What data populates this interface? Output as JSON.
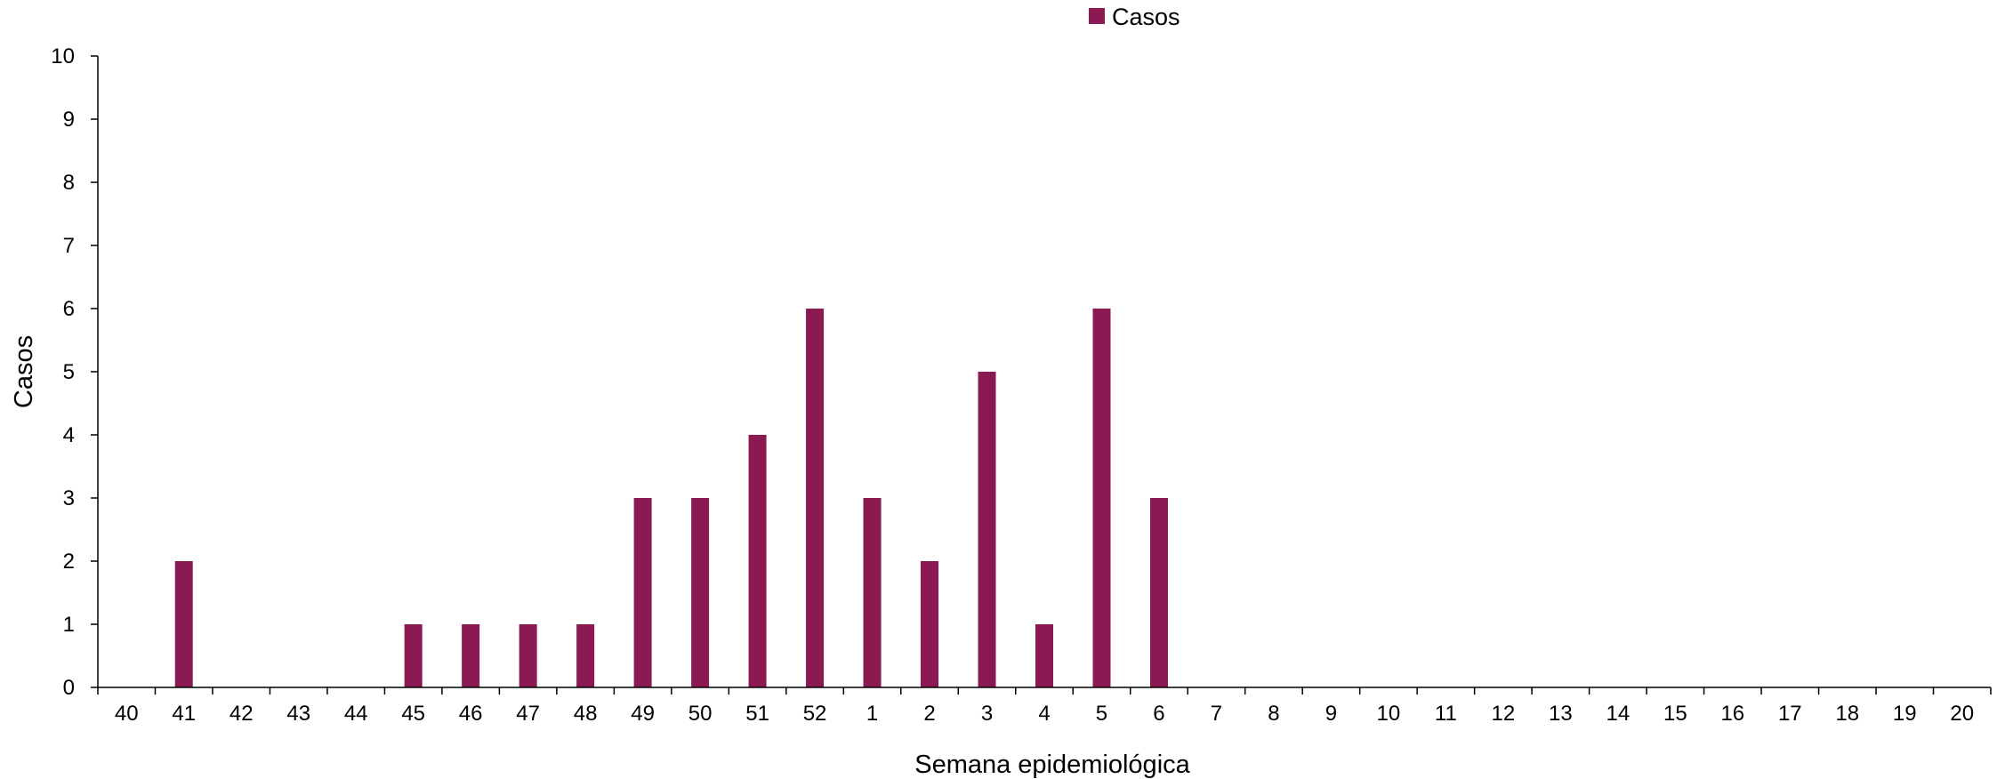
{
  "chart_data": {
    "type": "bar",
    "title": "",
    "xlabel": "Semana epidemiológica",
    "ylabel": "Casos",
    "ylim": [
      0,
      10
    ],
    "yticks": [
      0,
      1,
      2,
      3,
      4,
      5,
      6,
      7,
      8,
      9,
      10
    ],
    "grid": false,
    "legend_position": "top-center",
    "categories": [
      "40",
      "41",
      "42",
      "43",
      "44",
      "45",
      "46",
      "47",
      "48",
      "49",
      "50",
      "51",
      "52",
      "1",
      "2",
      "3",
      "4",
      "5",
      "6",
      "7",
      "8",
      "9",
      "10",
      "11",
      "12",
      "13",
      "14",
      "15",
      "16",
      "17",
      "18",
      "19",
      "20"
    ],
    "series": [
      {
        "name": "Casos",
        "color": "#8B1A52",
        "values": [
          0,
          2,
          0,
          0,
          0,
          1,
          1,
          1,
          1,
          3,
          3,
          4,
          6,
          3,
          2,
          5,
          1,
          6,
          3,
          0,
          0,
          0,
          0,
          0,
          0,
          0,
          0,
          0,
          0,
          0,
          0,
          0,
          0
        ]
      }
    ]
  }
}
